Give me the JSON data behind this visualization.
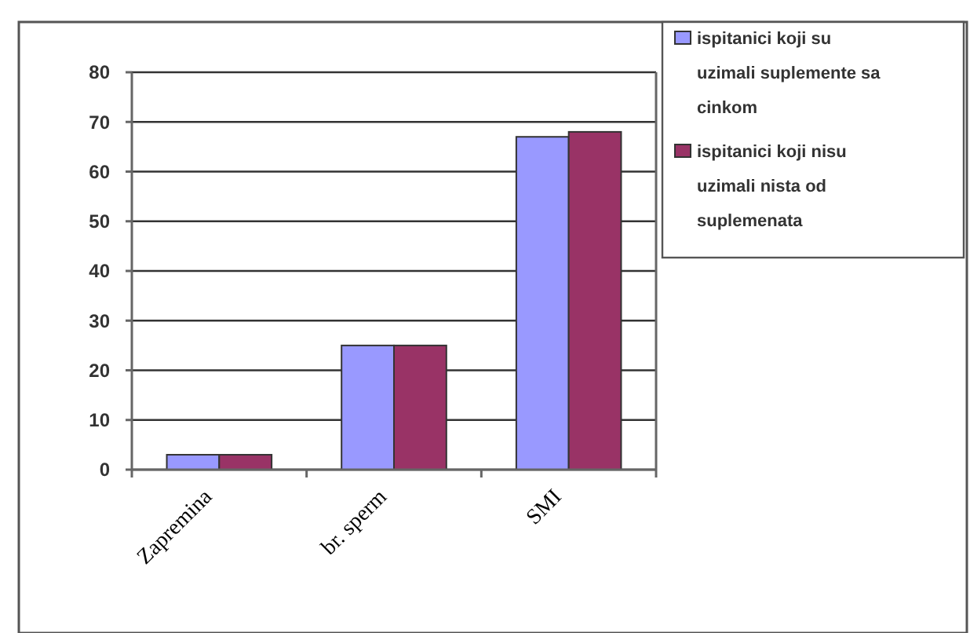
{
  "chart_data": {
    "type": "bar",
    "categories": [
      "Zapremina",
      "br. sperm",
      "SMI"
    ],
    "series": [
      {
        "name": "ispitanici koji su uzimali suplemente sa cinkom",
        "color": "#9999ff",
        "values": [
          3,
          25,
          67
        ]
      },
      {
        "name": "ispitanici koji nisu uzimali nista od suplemenata",
        "color": "#993366",
        "values": [
          3,
          25,
          68
        ]
      }
    ],
    "ylim": [
      0,
      80
    ],
    "yticks": [
      0,
      10,
      20,
      30,
      40,
      50,
      60,
      70,
      80
    ],
    "grid": "y",
    "legend": "top right"
  }
}
